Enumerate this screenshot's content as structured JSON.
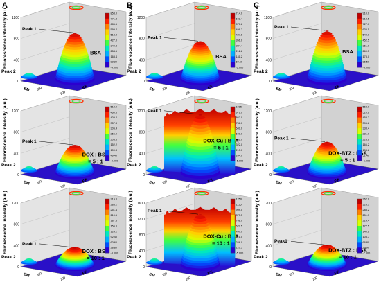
{
  "figure": {
    "column_letters": [
      "A",
      "B",
      "C"
    ],
    "ylabel": "Fluorescence intensity (a.u.)",
    "x_ticks": [
      "300",
      "200"
    ],
    "axis_em": "EM",
    "axis_ex": "EX"
  },
  "colors": {
    "colorbar": [
      "#2b00d0",
      "#0050ff",
      "#00b0ff",
      "#00e8c0",
      "#40ff40",
      "#d8ff00",
      "#ffd000",
      "#ff8000",
      "#ff2000",
      "#c00000"
    ]
  },
  "chart_data": [
    {
      "type": "surface3d",
      "column": "A",
      "row": 1,
      "peak1": "Peak 1",
      "peak2": "Peak 2",
      "label": [
        "BSA"
      ],
      "yticks": [
        "1200",
        "800",
        "400",
        "0"
      ],
      "ylim": [
        0,
        1200
      ],
      "peak_height": 860,
      "plateau": 0,
      "colorbar_ticks": [
        "858.0",
        "771.8",
        "685.6",
        "599.4",
        "513.2",
        "427.0",
        "340.8",
        "254.6",
        "168.4",
        "82.20",
        "-4.000"
      ]
    },
    {
      "type": "surface3d",
      "column": "B",
      "row": 1,
      "peak1": "Peak 1",
      "peak2": "Peak 2",
      "label": [
        "BSA"
      ],
      "yticks": [
        "1200",
        "800",
        "400",
        "0"
      ],
      "ylim": [
        0,
        1200
      ],
      "peak_height": 700,
      "plateau": 0,
      "colorbar_ticks": [
        "714.0",
        "642.4",
        "570.8",
        "499.2",
        "427.6",
        "356.0",
        "284.4",
        "212.8",
        "141.2",
        "69.60",
        "-2.000"
      ]
    },
    {
      "type": "surface3d",
      "column": "C",
      "row": 1,
      "peak1": "Peak 1",
      "peak2": "Peak 2",
      "label": [
        "BSA"
      ],
      "yticks": [
        "1200",
        "800",
        "400",
        "0"
      ],
      "ylim": [
        0,
        1200
      ],
      "peak_height": 900,
      "plateau": 0,
      "colorbar_ticks": [
        "910.0",
        "818.5",
        "727.0",
        "635.5",
        "544.0",
        "452.5",
        "361.0",
        "269.5",
        "178.0",
        "86.50",
        "-5.000"
      ]
    },
    {
      "type": "surface3d",
      "column": "A",
      "row": 2,
      "peak1": "Peak 1",
      "peak2": "Peak 2",
      "label": [
        "DOX : BSA",
        "= 5 : 1"
      ],
      "yticks": [
        "1200",
        "800",
        "400",
        "0"
      ],
      "ylim": [
        0,
        1200
      ],
      "peak_height": 510,
      "plateau": 0,
      "colorbar_ticks": [
        "512.0",
        "460.6",
        "409.2",
        "357.8",
        "306.4",
        "255.0",
        "203.6",
        "152.2",
        "100.8",
        "49.40",
        "-2.000"
      ]
    },
    {
      "type": "surface3d",
      "column": "B",
      "row": 2,
      "peak1": "Peak 1",
      "peak2": "Peak 2",
      "label": [
        "DOX-Cu : BSA",
        "= 5 : 1"
      ],
      "yticks": [
        "1200",
        "800",
        "400",
        "0"
      ],
      "ylim": [
        0,
        1200
      ],
      "peak_height": 1085,
      "plateau": 900,
      "colorbar_ticks": [
        "1085",
        "976.0",
        "867.0",
        "758.0",
        "649.0",
        "540.0",
        "431.0",
        "322.0",
        "213.0",
        "104.0",
        "-5.000"
      ]
    },
    {
      "type": "surface3d",
      "column": "C",
      "row": 2,
      "peak1": "Peak 1",
      "peak2": "Peak 2",
      "label": [
        "DOX-BTZ : BSA",
        "= 5 : 1"
      ],
      "yticks": [
        "1200",
        "800",
        "400",
        "0"
      ],
      "ylim": [
        0,
        1200
      ],
      "peak_height": 568,
      "plateau": 0,
      "colorbar_ticks": [
        "568.0",
        "510.6",
        "453.2",
        "395.8",
        "338.4",
        "281.0",
        "223.6",
        "166.2",
        "108.8",
        "51.40",
        "-6.000"
      ]
    },
    {
      "type": "surface3d",
      "column": "A",
      "row": 3,
      "peak1": "Peak 1",
      "peak2": "Peak 2",
      "label": [
        "DOX : BSA",
        "= 10 : 1"
      ],
      "yticks": [
        "1200",
        "800",
        "400",
        "0"
      ],
      "ylim": [
        0,
        1200
      ],
      "peak_height": 315,
      "plateau": 0,
      "colorbar_ticks": [
        "315.0",
        "283.2",
        "251.4",
        "219.6",
        "187.8",
        "156.0",
        "124.2",
        "92.40",
        "60.60",
        "28.80",
        "-3.000"
      ]
    },
    {
      "type": "surface3d",
      "column": "B",
      "row": 3,
      "peak1": "Peak 1",
      "peak2": "Peak 2",
      "label": [
        "DOX-Cu : BSA",
        "= 10 : 1"
      ],
      "yticks": [
        "1600",
        "1200",
        "800",
        "400",
        "0"
      ],
      "ylim": [
        0,
        1600
      ],
      "peak_height": 1250,
      "plateau": 1050,
      "colorbar_ticks": [
        "1250",
        "1125",
        "999.0",
        "873.5",
        "748.0",
        "622.5",
        "497.0",
        "371.5",
        "246.0",
        "120.5",
        "-5.000"
      ]
    },
    {
      "type": "surface3d",
      "column": "C",
      "row": 3,
      "peak1": "Peak1",
      "peak2": "Peak 2",
      "label": [
        "DOX-BTZ : BSA",
        "= 10 : 1"
      ],
      "yticks": [
        "1200",
        "800",
        "400",
        "0"
      ],
      "ylim": [
        0,
        1200
      ],
      "peak_height": 362,
      "plateau": 0,
      "colorbar_ticks": [
        "362.0",
        "325.1",
        "288.2",
        "251.3",
        "214.4",
        "177.5",
        "140.6",
        "103.7",
        "66.80",
        "29.90",
        "-7.000"
      ]
    }
  ]
}
